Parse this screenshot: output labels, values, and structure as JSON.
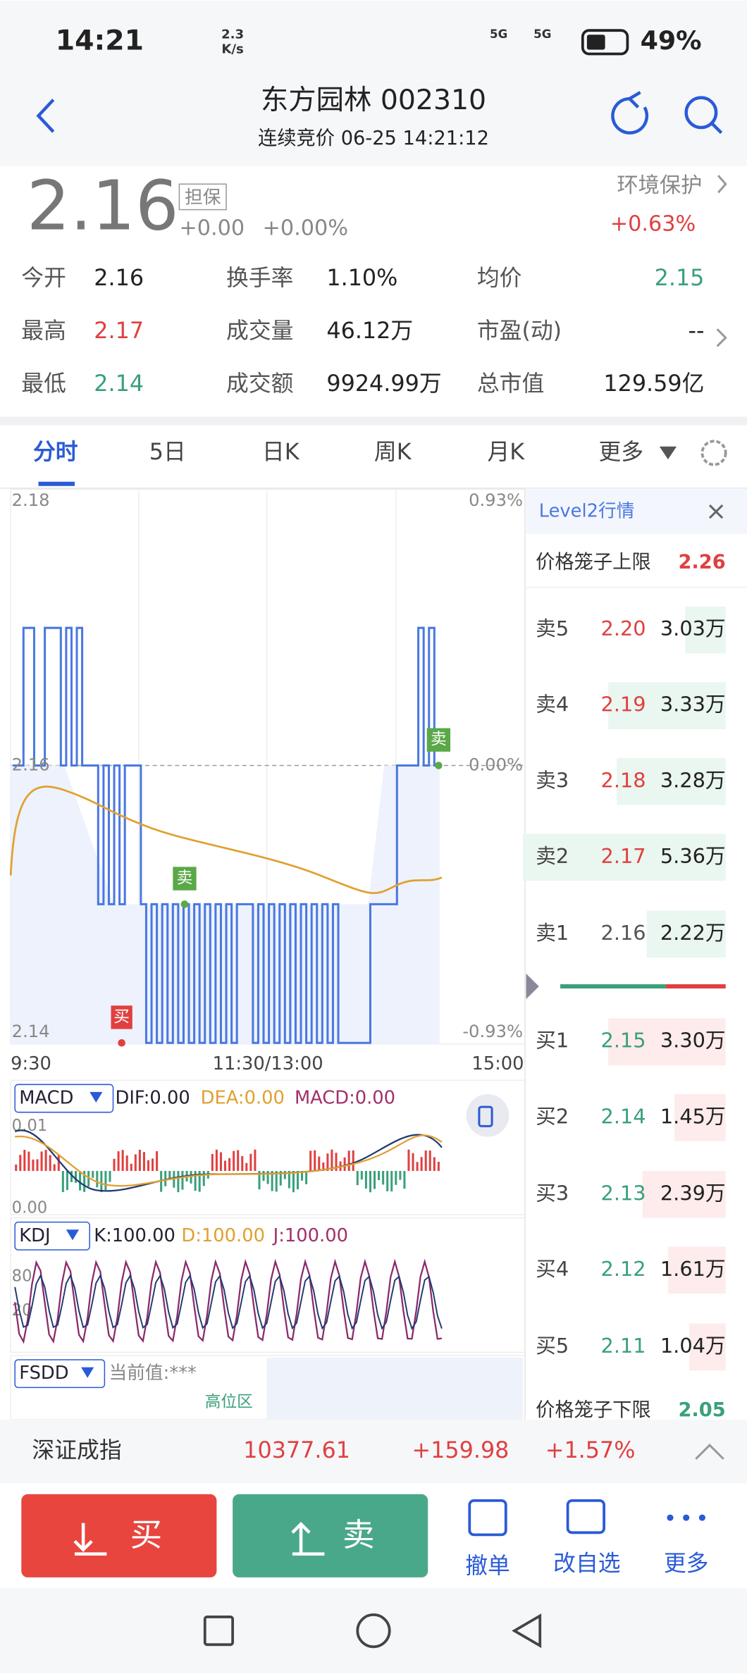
{
  "status_bar": {
    "time": "14:21",
    "speed_value": "2.3",
    "speed_unit": "K/s",
    "network_1": "5G",
    "network_2": "5G",
    "battery": "49%"
  },
  "header": {
    "title": "东方园林 002310",
    "subtitle": "连续竞价 06-25 14:21:12"
  },
  "quote": {
    "price": "2.16",
    "tag": "担保",
    "change": "+0.00",
    "change_pct": "+0.00%",
    "sector": "环境保护",
    "sector_change": "+0.63%"
  },
  "stats": [
    [
      {
        "label": "今开",
        "value": "2.16"
      },
      {
        "label": "换手率",
        "value": "1.10%"
      },
      {
        "label": "均价",
        "value": "2.15"
      }
    ],
    [
      {
        "label": "最高",
        "value": "2.17"
      },
      {
        "label": "成交量",
        "value": "46.12万"
      },
      {
        "label": "市盈(动)",
        "value": "--"
      }
    ],
    [
      {
        "label": "最低",
        "value": "2.14"
      },
      {
        "label": "成交额",
        "value": "9924.99万"
      },
      {
        "label": "总市值",
        "value": "129.59亿"
      }
    ]
  ],
  "tabs": [
    "分时",
    "5日",
    "日K",
    "周K",
    "月K",
    "更多"
  ],
  "chart": {
    "price_ticks": [
      "2.18",
      "2.16",
      "2.14"
    ],
    "pct_ticks": [
      "0.93%",
      "0.00%",
      "-0.93%"
    ],
    "time_ticks": [
      "9:30",
      "11:30/13:00",
      "15:00"
    ],
    "buy_marker": "买",
    "sell_markers": [
      "卖",
      "卖"
    ]
  },
  "macd": {
    "name": "MACD",
    "dif": "DIF:0.00",
    "dea": "DEA:0.00",
    "macd": "MACD:0.00",
    "ticks": [
      "0.01",
      "0.00"
    ]
  },
  "kdj": {
    "name": "KDJ",
    "k": "K:100.00",
    "d": "D:100.00",
    "j": "J:100.00",
    "ticks": [
      "80",
      "20"
    ]
  },
  "fsdd": {
    "name": "FSDD",
    "current": "当前值:***",
    "zone": "高位区"
  },
  "level2": {
    "title": "Level2行情",
    "upper_label": "价格笼子上限",
    "upper_value": "2.26",
    "lower_label": "价格笼子下限",
    "lower_value": "2.05",
    "asks": [
      [
        "卖5",
        "2.20",
        "3.03万"
      ],
      [
        "卖4",
        "2.19",
        "3.33万"
      ],
      [
        "卖3",
        "2.18",
        "3.28万"
      ],
      [
        "卖2",
        "2.17",
        "5.36万"
      ],
      [
        "卖1",
        "2.16",
        "2.22万"
      ]
    ],
    "bids": [
      [
        "买1",
        "2.15",
        "3.30万"
      ],
      [
        "买2",
        "2.14",
        "1.45万"
      ],
      [
        "买3",
        "2.13",
        "2.39万"
      ],
      [
        "买4",
        "2.12",
        "1.61万"
      ],
      [
        "买5",
        "2.11",
        "1.04万"
      ]
    ]
  },
  "index_bar": {
    "name": "深证成指",
    "value": "10377.61",
    "change": "+159.98",
    "change_pct": "+1.57%"
  },
  "toolbar": {
    "buy": "买",
    "sell": "卖",
    "cancel": "撤单",
    "watchlist": "改自选",
    "more": "更多"
  }
}
